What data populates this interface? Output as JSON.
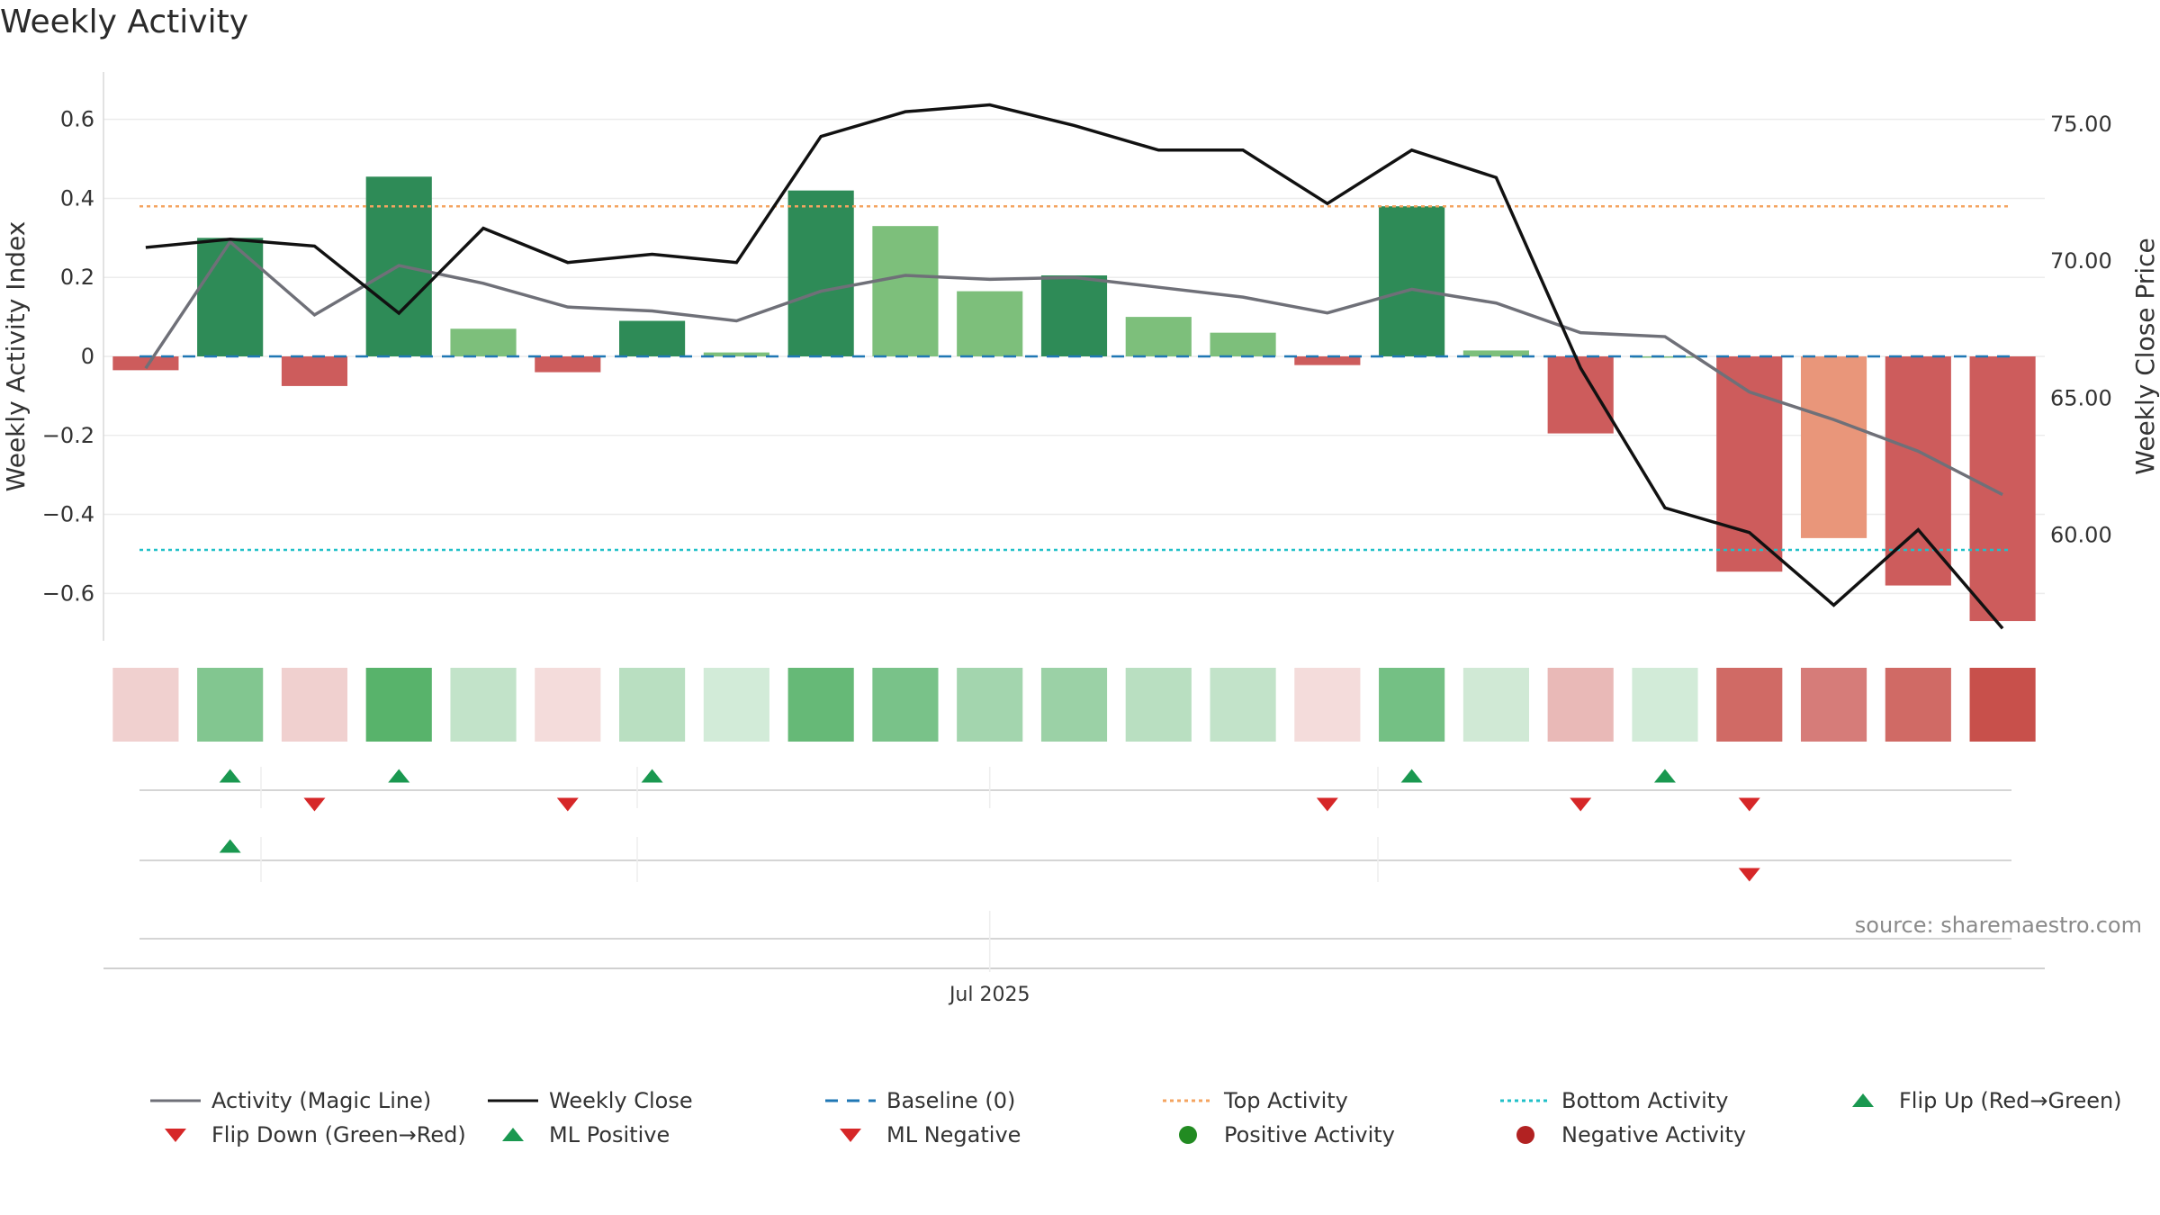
{
  "title": "Weekly Activity",
  "source": "source: sharemaestro.com",
  "colors": {
    "strong_pos": "#2e8b57",
    "weak_pos": "#7dbf7b",
    "strong_neg": "#cd5c5c",
    "weak_neg": "#e9967a",
    "magic_line": "#6f7078",
    "close_line": "#111111",
    "baseline": "#1f77b4",
    "top_line": "#f4a460",
    "bottom_line": "#20c0c8",
    "flip_up": "#1a9850",
    "flip_down": "#d62728"
  },
  "chart_data": {
    "type": "bar",
    "x_labels": [
      "Jul 2025"
    ],
    "x_label_index": 10,
    "left_axis": {
      "label": "Weekly Activity Index",
      "ylim": [
        -0.72,
        0.72
      ],
      "ticks": [
        {
          "v": 0.6,
          "t": "0.6"
        },
        {
          "v": 0.4,
          "t": "0.4"
        },
        {
          "v": 0.2,
          "t": "0.2"
        },
        {
          "v": 0,
          "t": "0"
        },
        {
          "v": -0.2,
          "t": "−0.2"
        },
        {
          "v": -0.4,
          "t": "−0.4"
        },
        {
          "v": -0.6,
          "t": "−0.6"
        }
      ]
    },
    "right_axis": {
      "label": "Weekly Close Price",
      "ylim": [
        56.15,
        76.9
      ],
      "ticks": [
        {
          "v": 75,
          "t": "75.00"
        },
        {
          "v": 70,
          "t": "70.00"
        },
        {
          "v": 65,
          "t": "65.00"
        },
        {
          "v": 60,
          "t": "60.00"
        }
      ]
    },
    "activity": [
      -0.035,
      0.3,
      -0.075,
      0.455,
      0.07,
      -0.04,
      0.09,
      0.01,
      0.42,
      0.33,
      0.165,
      0.205,
      0.1,
      0.06,
      -0.022,
      0.38,
      0.015,
      -0.195,
      0,
      -0.545,
      -0.46,
      -0.58,
      -0.67
    ],
    "bar_strength": [
      "strong",
      "strong",
      "strong",
      "strong",
      "weak",
      "strong",
      "strong",
      "weak",
      "strong",
      "weak",
      "weak",
      "strong",
      "weak",
      "weak",
      "strong",
      "strong",
      "weak",
      "strong",
      "weak",
      "strong",
      "weak",
      "strong",
      "strong"
    ],
    "magic_line": [
      -0.03,
      0.29,
      0.105,
      0.23,
      0.185,
      0.125,
      0.115,
      0.09,
      0.165,
      0.205,
      0.195,
      0.2,
      0.175,
      0.15,
      0.11,
      0.17,
      0.135,
      0.06,
      0.05,
      -0.09,
      -0.16,
      -0.24,
      -0.35
    ],
    "weekly_close": [
      70.5,
      70.8,
      70.55,
      68.1,
      71.2,
      69.95,
      70.25,
      69.95,
      74.55,
      75.45,
      75.7,
      74.95,
      74.05,
      74.05,
      72.1,
      74.05,
      73.05,
      66.1,
      61.0,
      60.1,
      57.45,
      60.2,
      56.6
    ],
    "top_activity": 0.38,
    "bottom_activity": -0.49,
    "baseline": 0,
    "heat_strip": [
      -0.2,
      0.45,
      -0.2,
      0.6,
      0.22,
      -0.15,
      0.25,
      0.16,
      0.55,
      0.48,
      0.33,
      0.36,
      0.25,
      0.22,
      -0.15,
      0.5,
      0.17,
      -0.3,
      0.16,
      -0.64,
      -0.56,
      -0.64,
      -0.75
    ],
    "markers": {
      "row1_up": [
        1,
        3,
        6,
        15,
        18
      ],
      "row1_down": [
        2,
        5,
        14,
        17,
        19
      ],
      "row2_up": [
        1
      ],
      "row2_down": [
        19
      ]
    },
    "legend_position": "bottom",
    "grid": true
  },
  "legend": [
    {
      "label": "Activity (Magic Line)",
      "icon": "line",
      "color": "#6f7078"
    },
    {
      "label": "Weekly Close",
      "icon": "line",
      "color": "#111111"
    },
    {
      "label": "Baseline (0)",
      "icon": "dashed-line",
      "color": "#1f77b4"
    },
    {
      "label": "Top Activity",
      "icon": "dotted-line",
      "color": "#f4a460"
    },
    {
      "label": "Bottom Activity",
      "icon": "dotted-line",
      "color": "#20c0c8"
    },
    {
      "label": "Flip Up (Red→Green)",
      "icon": "triangle-up",
      "color": "#1a9850"
    },
    {
      "label": "Flip Down (Green→Red)",
      "icon": "triangle-down",
      "color": "#d62728"
    },
    {
      "label": "ML Positive",
      "icon": "triangle-up",
      "color": "#1a9850"
    },
    {
      "label": "ML Negative",
      "icon": "triangle-down",
      "color": "#d62728"
    },
    {
      "label": "Positive Activity",
      "icon": "circle",
      "color": "#228b22"
    },
    {
      "label": "Negative Activity",
      "icon": "circle",
      "color": "#b22222"
    }
  ]
}
